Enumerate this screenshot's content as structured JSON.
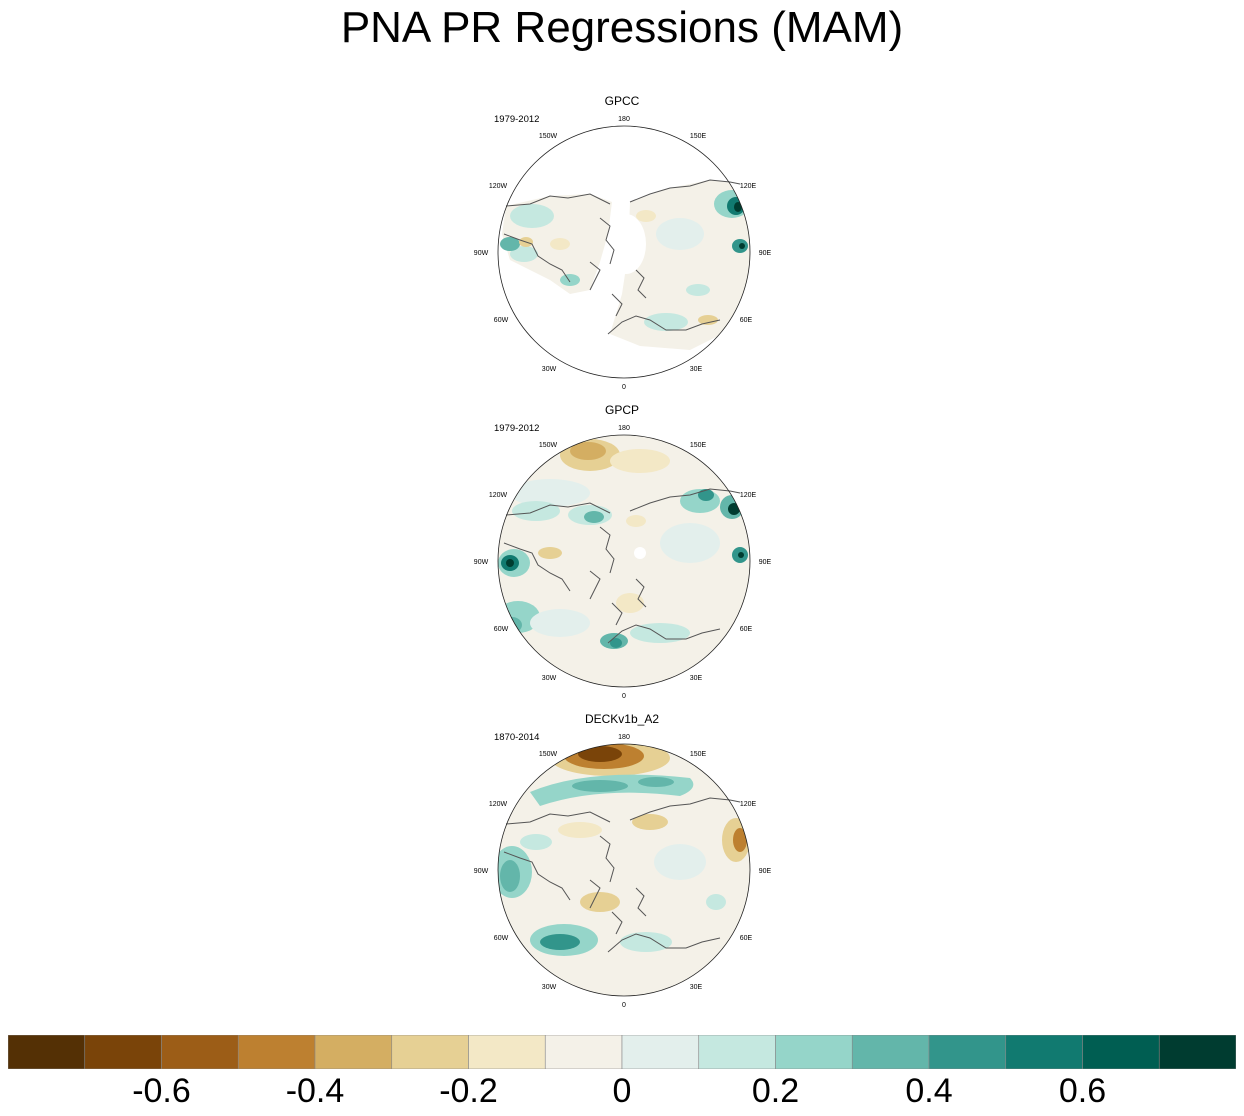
{
  "title": "PNA PR Regressions (MAM)",
  "panels": [
    {
      "name": "GPCC",
      "period": "1979-2012"
    },
    {
      "name": "GPCP",
      "period": "1979-2012"
    },
    {
      "name": "DECKv1b_A2",
      "period": "1870-2014"
    }
  ],
  "longitude_labels": [
    "180",
    "150E",
    "120E",
    "90E",
    "60E",
    "30E",
    "0",
    "30W",
    "60W",
    "90W",
    "120W",
    "150W"
  ],
  "colorbar": {
    "colors": [
      "#543005",
      "#7a4409",
      "#9c5d17",
      "#bd8030",
      "#d4ae62",
      "#e6d094",
      "#f3e8c6",
      "#f4f1e8",
      "#e3efec",
      "#c5e8e0",
      "#95d5c9",
      "#63b6aa",
      "#32958b",
      "#117a70",
      "#005e52",
      "#003c30"
    ],
    "tick_labels": [
      "-0.6",
      "-0.4",
      "-0.2",
      "0",
      "0.2",
      "0.4",
      "0.6"
    ]
  },
  "palette": {
    "land_outline": "#555555",
    "missing": "#ffffff"
  }
}
